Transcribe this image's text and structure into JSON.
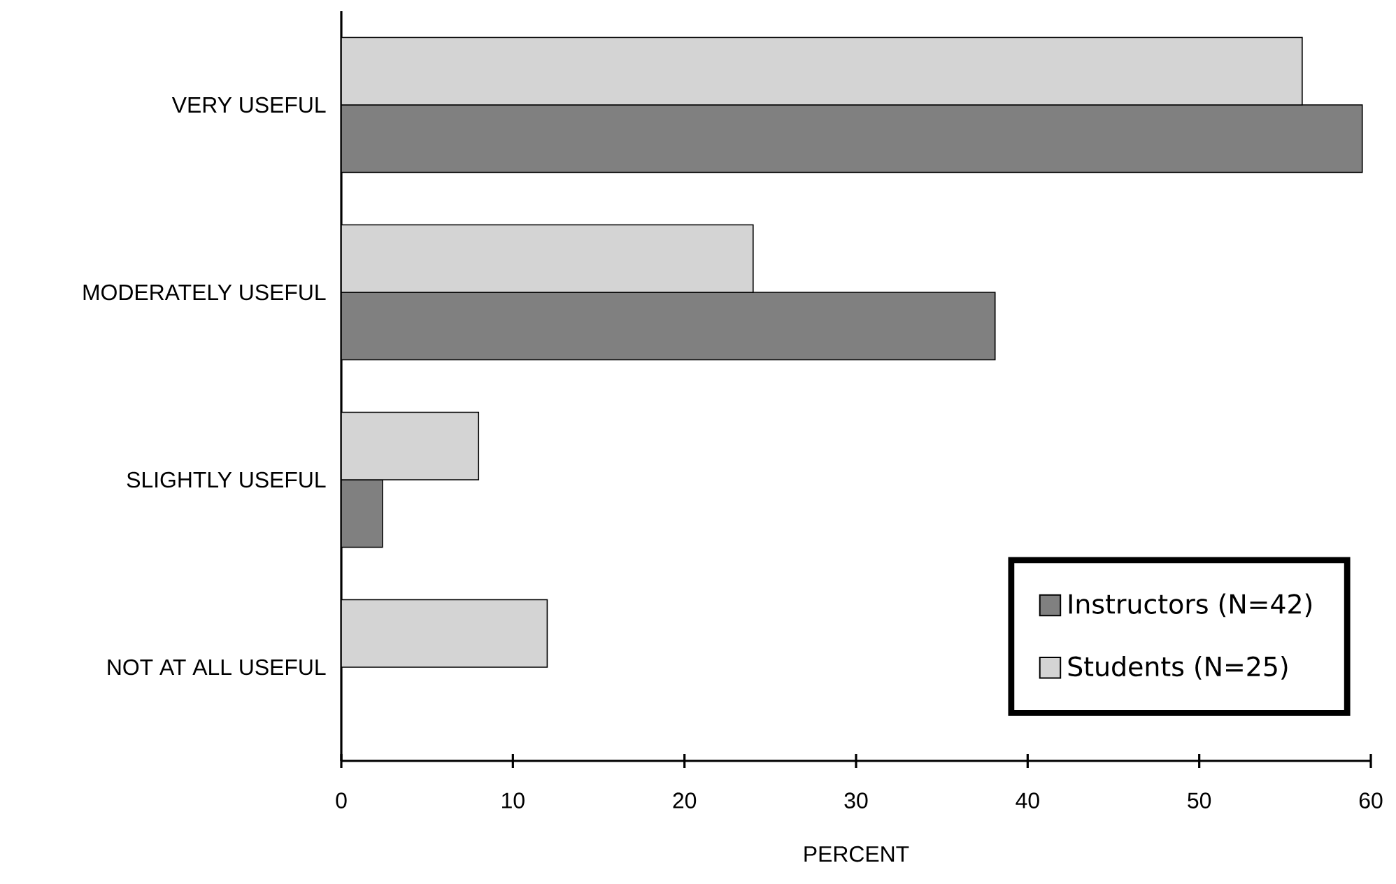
{
  "chart_data": {
    "type": "bar",
    "orientation": "horizontal",
    "xlabel": "PERCENT",
    "categories": [
      "VERY USEFUL",
      "MODERATELY USEFUL",
      "SLIGHTLY USEFUL",
      "NOT AT ALL USEFUL"
    ],
    "series": [
      {
        "name": "Instructors (N=42)",
        "color": "#808080",
        "values": [
          59.5,
          38.1,
          2.4,
          0
        ]
      },
      {
        "name": "Students (N=25)",
        "color": "#d4d4d4",
        "values": [
          56,
          24,
          8,
          12
        ]
      }
    ],
    "xlim": [
      0,
      60
    ],
    "xticks": [
      0,
      10,
      20,
      30,
      40,
      50,
      60
    ],
    "legend": "bottom right"
  }
}
